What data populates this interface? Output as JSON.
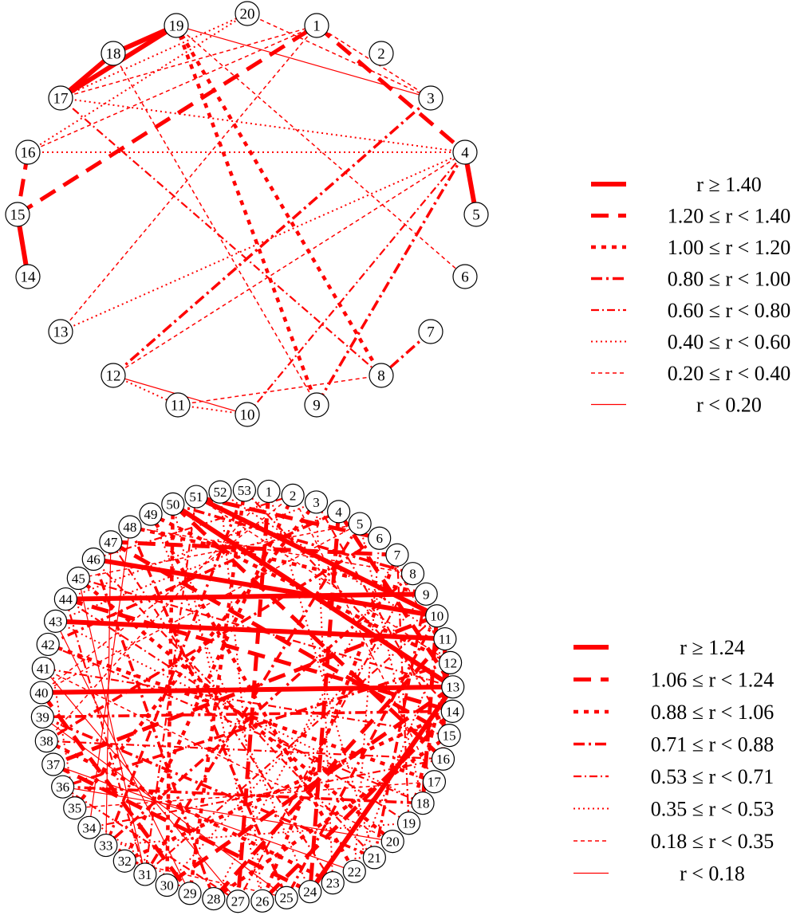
{
  "colors": {
    "edge": "#ff0000",
    "node_fill": "#ffffff",
    "node_stroke": "#000000",
    "text": "#000000"
  },
  "graphs": [
    {
      "id": "top",
      "node_labels": [
        "1",
        "2",
        "3",
        "4",
        "5",
        "6",
        "7",
        "8",
        "9",
        "10",
        "11",
        "12",
        "13",
        "14",
        "15",
        "16",
        "17",
        "18",
        "19",
        "20"
      ],
      "edges": [
        {
          "from": "19",
          "to": "17",
          "cls": 0
        },
        {
          "from": "19",
          "to": "18",
          "cls": 0
        },
        {
          "from": "18",
          "to": "17",
          "cls": 0
        },
        {
          "from": "15",
          "to": "14",
          "cls": 0
        },
        {
          "from": "4",
          "to": "5",
          "cls": 0
        },
        {
          "from": "1",
          "to": "4",
          "cls": 1
        },
        {
          "from": "15",
          "to": "1",
          "cls": 1
        },
        {
          "from": "19",
          "to": "9",
          "cls": 2
        },
        {
          "from": "19",
          "to": "8",
          "cls": 2
        },
        {
          "from": "16",
          "to": "15",
          "cls": 1
        },
        {
          "from": "4",
          "to": "9",
          "cls": 3
        },
        {
          "from": "3",
          "to": "12",
          "cls": 3
        },
        {
          "from": "7",
          "to": "8",
          "cls": 3
        },
        {
          "from": "10",
          "to": "4",
          "cls": 4
        },
        {
          "from": "17",
          "to": "8",
          "cls": 4
        },
        {
          "from": "17",
          "to": "4",
          "cls": 5
        },
        {
          "from": "16",
          "to": "4",
          "cls": 5
        },
        {
          "from": "13",
          "to": "4",
          "cls": 5
        },
        {
          "from": "16",
          "to": "20",
          "cls": 5
        },
        {
          "from": "17",
          "to": "20",
          "cls": 5
        },
        {
          "from": "12",
          "to": "11",
          "cls": 5
        },
        {
          "from": "11",
          "to": "10",
          "cls": 5
        },
        {
          "from": "11",
          "to": "8",
          "cls": 6
        },
        {
          "from": "20",
          "to": "3",
          "cls": 6
        },
        {
          "from": "1",
          "to": "13",
          "cls": 6
        },
        {
          "from": "1",
          "to": "3",
          "cls": 6
        },
        {
          "from": "19",
          "to": "6",
          "cls": 6
        },
        {
          "from": "17",
          "to": "1",
          "cls": 6
        },
        {
          "from": "18",
          "to": "9",
          "cls": 6
        },
        {
          "from": "16",
          "to": "1",
          "cls": 6
        },
        {
          "from": "12",
          "to": "4",
          "cls": 6
        },
        {
          "from": "10",
          "to": "12",
          "cls": 7
        },
        {
          "from": "19",
          "to": "3",
          "cls": 7
        }
      ],
      "legend": [
        {
          "label": "r ≥ 1.40",
          "cls": 0
        },
        {
          "label": "1.20 ≤ r < 1.40",
          "cls": 1
        },
        {
          "label": "1.00 ≤ r < 1.20",
          "cls": 2
        },
        {
          "label": "0.80 ≤ r < 1.00",
          "cls": 3
        },
        {
          "label": "0.60 ≤ r < 0.80",
          "cls": 4
        },
        {
          "label": "0.40 ≤ r < 0.60",
          "cls": 5
        },
        {
          "label": "0.20 ≤ r < 0.40",
          "cls": 6
        },
        {
          "label": "r < 0.20",
          "cls": 7
        }
      ]
    },
    {
      "id": "bottom",
      "node_labels": [
        "1",
        "2",
        "3",
        "4",
        "5",
        "6",
        "7",
        "8",
        "9",
        "10",
        "11",
        "12",
        "13",
        "14",
        "15",
        "16",
        "17",
        "18",
        "19",
        "20",
        "21",
        "22",
        "23",
        "24",
        "25",
        "26",
        "27",
        "28",
        "29",
        "30",
        "31",
        "32",
        "33",
        "34",
        "35",
        "36",
        "37",
        "38",
        "39",
        "40",
        "41",
        "42",
        "43",
        "44",
        "45",
        "46",
        "47",
        "48",
        "49",
        "50",
        "51",
        "52",
        "53"
      ],
      "edges": [
        {
          "from": "40",
          "to": "13",
          "cls": 0
        },
        {
          "from": "43",
          "to": "11",
          "cls": 0
        },
        {
          "from": "46",
          "to": "10",
          "cls": 0
        },
        {
          "from": "51",
          "to": "10",
          "cls": 0
        },
        {
          "from": "50",
          "to": "13",
          "cls": 0
        },
        {
          "from": "44",
          "to": "9",
          "cls": 0
        },
        {
          "from": "47",
          "to": "7",
          "cls": 1
        },
        {
          "from": "50",
          "to": "16",
          "cls": 1
        },
        {
          "from": "1",
          "to": "27",
          "cls": 1
        },
        {
          "from": "4",
          "to": "24",
          "cls": 1
        },
        {
          "from": "51",
          "to": "6",
          "cls": 1
        },
        {
          "from": "44",
          "to": "14",
          "cls": 1
        },
        {
          "from": "13",
          "to": "30",
          "cls": 1
        },
        {
          "from": "11",
          "to": "28",
          "cls": 1
        },
        {
          "from": "10",
          "to": "37",
          "cls": 1
        },
        {
          "from": "53",
          "to": "29",
          "cls": 2
        },
        {
          "from": "2",
          "to": "32",
          "cls": 2
        },
        {
          "from": "3",
          "to": "35",
          "cls": 2
        },
        {
          "from": "49",
          "to": "22",
          "cls": 2
        },
        {
          "from": "45",
          "to": "20",
          "cls": 2
        },
        {
          "from": "42",
          "to": "17",
          "cls": 2
        },
        {
          "from": "5",
          "to": "31",
          "cls": 3
        },
        {
          "from": "6",
          "to": "38",
          "cls": 3
        },
        {
          "from": "8",
          "to": "33",
          "cls": 3
        },
        {
          "from": "48",
          "to": "25",
          "cls": 3
        },
        {
          "from": "12",
          "to": "36",
          "cls": 3
        },
        {
          "from": "14",
          "to": "39",
          "cls": 3
        },
        {
          "from": "15",
          "to": "41",
          "cls": 4
        },
        {
          "from": "16",
          "to": "34",
          "cls": 4
        },
        {
          "from": "18",
          "to": "42",
          "cls": 4
        },
        {
          "from": "19",
          "to": "44",
          "cls": 4
        },
        {
          "from": "21",
          "to": "46",
          "cls": 4
        },
        {
          "from": "23",
          "to": "47",
          "cls": 4
        },
        {
          "from": "24",
          "to": "49",
          "cls": 5
        },
        {
          "from": "26",
          "to": "50",
          "cls": 5
        },
        {
          "from": "52",
          "to": "26",
          "cls": 5
        },
        {
          "from": "7",
          "to": "28",
          "cls": 5
        },
        {
          "from": "9",
          "to": "30",
          "cls": 5
        },
        {
          "from": "3",
          "to": "23",
          "cls": 5
        },
        {
          "from": "4",
          "to": "43",
          "cls": 5
        },
        {
          "from": "1",
          "to": "38",
          "cls": 6
        },
        {
          "from": "2",
          "to": "40",
          "cls": 6
        },
        {
          "from": "5",
          "to": "45",
          "cls": 6
        },
        {
          "from": "8",
          "to": "48",
          "cls": 6
        },
        {
          "from": "12",
          "to": "51",
          "cls": 6
        },
        {
          "from": "17",
          "to": "35",
          "cls": 6
        },
        {
          "from": "20",
          "to": "36",
          "cls": 7
        },
        {
          "from": "22",
          "to": "37",
          "cls": 7
        },
        {
          "from": "25",
          "to": "39",
          "cls": 7
        },
        {
          "from": "27",
          "to": "41",
          "cls": 7
        },
        {
          "from": "29",
          "to": "43",
          "cls": 7
        },
        {
          "from": "31",
          "to": "45",
          "cls": 7
        },
        {
          "from": "33",
          "to": "47",
          "cls": 7
        },
        {
          "from": "34",
          "to": "48",
          "cls": 7
        },
        {
          "from": "6",
          "to": "22",
          "cls": 5
        },
        {
          "from": "7",
          "to": "19",
          "cls": 4
        },
        {
          "from": "9",
          "to": "21",
          "cls": 3
        },
        {
          "from": "10",
          "to": "18",
          "cls": 1
        },
        {
          "from": "11",
          "to": "16",
          "cls": 1
        },
        {
          "from": "12",
          "to": "19",
          "cls": 2
        },
        {
          "from": "13",
          "to": "24",
          "cls": 0
        },
        {
          "from": "14",
          "to": "26",
          "cls": 1
        },
        {
          "from": "15",
          "to": "28",
          "cls": 2
        },
        {
          "from": "53",
          "to": "14",
          "cls": 4
        },
        {
          "from": "52",
          "to": "11",
          "cls": 5
        },
        {
          "from": "50",
          "to": "8",
          "cls": 3
        },
        {
          "from": "49",
          "to": "12",
          "cls": 2
        },
        {
          "from": "47",
          "to": "15",
          "cls": 1
        },
        {
          "from": "45",
          "to": "13",
          "cls": 4
        },
        {
          "from": "43",
          "to": "18",
          "cls": 5
        },
        {
          "from": "41",
          "to": "20",
          "cls": 6
        },
        {
          "from": "39",
          "to": "21",
          "cls": 3
        },
        {
          "from": "38",
          "to": "23",
          "cls": 2
        },
        {
          "from": "37",
          "to": "24",
          "cls": 1
        },
        {
          "from": "36",
          "to": "27",
          "cls": 4
        },
        {
          "from": "35",
          "to": "29",
          "cls": 5
        },
        {
          "from": "34",
          "to": "30",
          "cls": 3
        },
        {
          "from": "32",
          "to": "25",
          "cls": 6
        },
        {
          "from": "46",
          "to": "2",
          "cls": 4
        },
        {
          "from": "44",
          "to": "3",
          "cls": 5
        },
        {
          "from": "42",
          "to": "4",
          "cls": 3
        },
        {
          "from": "40",
          "to": "5",
          "cls": 6
        },
        {
          "from": "48",
          "to": "9",
          "cls": 2
        },
        {
          "from": "51",
          "to": "31",
          "cls": 4
        },
        {
          "from": "53",
          "to": "33",
          "cls": 3
        },
        {
          "from": "1",
          "to": "21",
          "cls": 5
        },
        {
          "from": "2",
          "to": "17",
          "cls": 6
        },
        {
          "from": "3",
          "to": "15",
          "cls": 4
        },
        {
          "from": "4",
          "to": "13",
          "cls": 1
        },
        {
          "from": "5",
          "to": "18",
          "cls": 5
        },
        {
          "from": "6",
          "to": "12",
          "cls": 6
        },
        {
          "from": "7",
          "to": "26",
          "cls": 2
        },
        {
          "from": "8",
          "to": "27",
          "cls": 4
        },
        {
          "from": "10",
          "to": "25",
          "cls": 3
        },
        {
          "from": "11",
          "to": "22",
          "cls": 5
        },
        {
          "from": "50",
          "to": "30",
          "cls": 2
        },
        {
          "from": "46",
          "to": "28",
          "cls": 3
        },
        {
          "from": "44",
          "to": "31",
          "cls": 4
        },
        {
          "from": "42",
          "to": "35",
          "cls": 5
        },
        {
          "from": "40",
          "to": "29",
          "cls": 1
        },
        {
          "from": "38",
          "to": "16",
          "cls": 4
        },
        {
          "from": "36",
          "to": "18",
          "cls": 3
        },
        {
          "from": "33",
          "to": "19",
          "cls": 5
        },
        {
          "from": "32",
          "to": "14",
          "cls": 2
        },
        {
          "from": "31",
          "to": "10",
          "cls": 4
        }
      ],
      "legend": [
        {
          "label": "r ≥ 1.24",
          "cls": 0
        },
        {
          "label": "1.06 ≤ r < 1.24",
          "cls": 1
        },
        {
          "label": "0.88 ≤ r < 1.06",
          "cls": 2
        },
        {
          "label": "0.71 ≤ r < 0.88",
          "cls": 3
        },
        {
          "label": "0.53 ≤ r < 0.71",
          "cls": 4
        },
        {
          "label": "0.35 ≤ r < 0.53",
          "cls": 5
        },
        {
          "label": "0.18 ≤ r < 0.35",
          "cls": 6
        },
        {
          "label": "r < 0.18",
          "cls": 7
        }
      ]
    }
  ]
}
